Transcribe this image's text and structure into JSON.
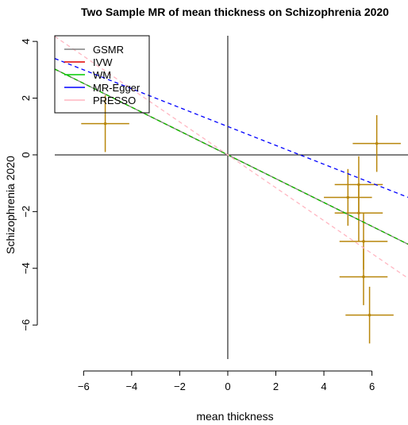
{
  "chart_data": {
    "type": "scatter",
    "title": "Two Sample MR of mean thickness on Schizophrenia 2020",
    "xlabel": "mean thickness",
    "ylabel": "Schizophrenia 2020",
    "xlim": [
      -7.2,
      7.5
    ],
    "ylim": [
      -7.2,
      4.2
    ],
    "x_ticks": [
      -6,
      -4,
      -2,
      0,
      2,
      4,
      6
    ],
    "y_ticks": [
      -6,
      -4,
      -2,
      0,
      2,
      4
    ],
    "reference_lines": {
      "x": 0,
      "y": 0
    },
    "point_color": "#b8860b",
    "points": [
      {
        "x": -5.1,
        "y": 1.1,
        "x_err": 1.0,
        "y_err": 1.0
      },
      {
        "x": 6.2,
        "y": 0.4,
        "x_err": 1.0,
        "y_err": 1.0
      },
      {
        "x": 5.0,
        "y": -1.5,
        "x_err": 1.0,
        "y_err": 1.0
      },
      {
        "x": 5.45,
        "y": -1.05,
        "x_err": 1.0,
        "y_err": 1.0
      },
      {
        "x": 5.45,
        "y": -2.05,
        "x_err": 1.0,
        "y_err": 1.0
      },
      {
        "x": 5.65,
        "y": -3.05,
        "x_err": 1.0,
        "y_err": 1.0
      },
      {
        "x": 5.65,
        "y": -4.3,
        "x_err": 1.0,
        "y_err": 1.0
      },
      {
        "x": 5.9,
        "y": -5.65,
        "x_err": 1.0,
        "y_err": 1.0
      }
    ],
    "series": [
      {
        "name": "GSMR",
        "slope": -0.42,
        "intercept": 0.0,
        "color": "#808080",
        "dash": "solid"
      },
      {
        "name": "IVW",
        "slope": -0.42,
        "intercept": 0.0,
        "color": "#e00000",
        "dash": "dashed"
      },
      {
        "name": "WM",
        "slope": -0.42,
        "intercept": 0.0,
        "color": "#00cc00",
        "dash": "dashed"
      },
      {
        "name": "MR-Egger",
        "slope": -0.333,
        "intercept": 1.0,
        "color": "#0000ff",
        "dash": "dashed"
      },
      {
        "name": "PRESSO",
        "slope": -0.58,
        "intercept": 0.0,
        "color": "#ffb6c1",
        "dash": "dashed"
      }
    ],
    "legend": {
      "position": "top-left"
    }
  }
}
